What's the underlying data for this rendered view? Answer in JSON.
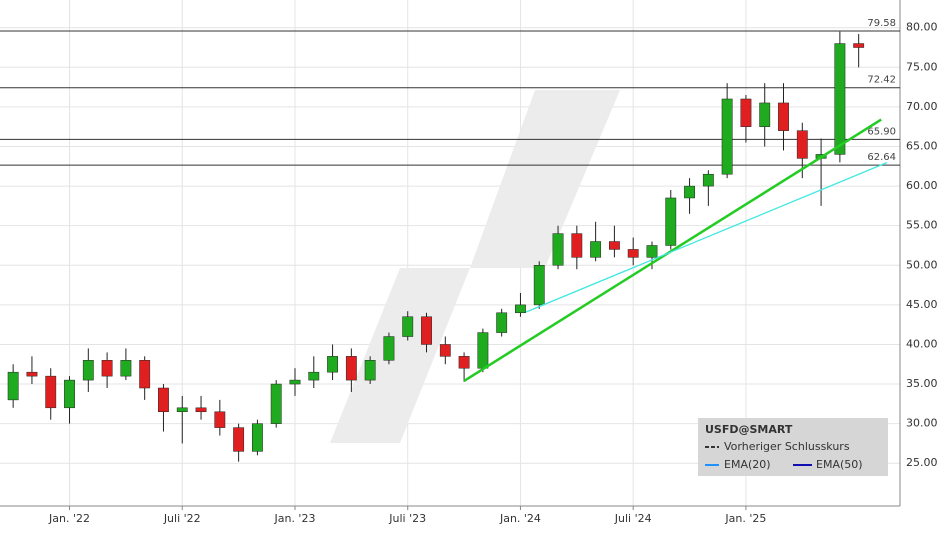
{
  "chart_data": {
    "type": "candlestick",
    "x": [
      -3,
      -2,
      -1,
      0,
      1,
      2,
      3,
      4,
      5,
      6,
      7,
      8,
      9,
      10,
      11,
      12,
      13,
      14,
      15,
      16,
      17,
      18,
      19,
      20,
      21,
      22,
      23,
      24,
      25,
      26,
      27,
      28,
      29,
      30,
      31,
      32,
      33,
      34,
      35,
      36,
      37,
      38,
      39,
      40,
      41,
      42
    ],
    "open": [
      33,
      36.5,
      36,
      32,
      35.5,
      38,
      36,
      38,
      34.5,
      31.5,
      32,
      31.5,
      29.5,
      26.5,
      30,
      35,
      35.5,
      36.5,
      38.5,
      35.5,
      38,
      41,
      43.5,
      40,
      38.5,
      37,
      41.5,
      44,
      45,
      50,
      54,
      51,
      53,
      52,
      51,
      52.5,
      58.5,
      60,
      61.5,
      71,
      67.5,
      70.5,
      67,
      63.5,
      64,
      78
    ],
    "high": [
      37.5,
      38.5,
      37,
      36,
      39.5,
      39,
      39.5,
      38.5,
      35,
      33.5,
      33.5,
      33,
      30,
      30.5,
      35.5,
      37,
      38.5,
      40,
      39.5,
      38.5,
      41.5,
      44.2,
      44,
      41,
      39,
      42,
      44.5,
      46.5,
      50.5,
      55,
      55,
      55.5,
      55,
      53.5,
      53,
      59.5,
      61,
      62,
      73,
      71.5,
      73,
      73,
      68,
      66,
      79.5,
      79.2
    ],
    "low": [
      32,
      35,
      30.5,
      30,
      34,
      34.5,
      35.5,
      33,
      29,
      27.5,
      30.5,
      28.5,
      25.2,
      26,
      29.5,
      33.5,
      34.5,
      35.5,
      34,
      35,
      37.5,
      40.5,
      39,
      37.5,
      35.3,
      36.5,
      41,
      43.5,
      44.5,
      49.5,
      49.5,
      50.5,
      51,
      50,
      49.5,
      52,
      56.5,
      57.5,
      61,
      65.5,
      65,
      64.5,
      61,
      57.5,
      63,
      75
    ],
    "close": [
      36.5,
      36,
      32,
      35.5,
      38,
      36,
      38,
      34.5,
      31.5,
      32,
      31.5,
      29.5,
      26.5,
      30,
      35,
      35.5,
      36.5,
      38.5,
      35.5,
      38,
      41,
      43.5,
      40,
      38.5,
      37,
      41.5,
      44,
      45,
      50,
      54,
      51,
      53,
      52,
      51,
      52.5,
      58.5,
      60,
      61.5,
      71,
      67.5,
      70.5,
      67,
      63.5,
      64,
      78,
      77.5
    ],
    "up_color": "#1faa1f",
    "down_color": "#e02020",
    "xlim": [
      -3.7,
      44.2
    ],
    "xticks": [
      {
        "value": 0,
        "label": "Jan. '22"
      },
      {
        "value": 6,
        "label": "Juli '22"
      },
      {
        "value": 12,
        "label": "Jan. '23"
      },
      {
        "value": 18,
        "label": "Juli '23"
      },
      {
        "value": 24,
        "label": "Jan. '24"
      },
      {
        "value": 30,
        "label": "Juli '24"
      },
      {
        "value": 36,
        "label": "Jan. '25"
      }
    ],
    "ylim": [
      19.6,
      83.5
    ],
    "yticks": [
      {
        "value": 25,
        "label": "25.00"
      },
      {
        "value": 30,
        "label": "30.00"
      },
      {
        "value": 35,
        "label": "35.00"
      },
      {
        "value": 40,
        "label": "40.00"
      },
      {
        "value": 45,
        "label": "45.00"
      },
      {
        "value": 50,
        "label": "50.00"
      },
      {
        "value": 55,
        "label": "55.00"
      },
      {
        "value": 60,
        "label": "60.00"
      },
      {
        "value": 65,
        "label": "65.00"
      },
      {
        "value": 70,
        "label": "70.00"
      },
      {
        "value": 75,
        "label": "75.00"
      },
      {
        "value": 80,
        "label": "80.00"
      }
    ],
    "grid": true,
    "levels": [
      79.58,
      {
        "value": 72.42,
        "label": "72.42"
      },
      {
        "value": 65.9,
        "label": "65.90"
      },
      62.64
    ],
    "trend_lines": [
      {
        "color": "#22cc22",
        "x": [
          21,
          43.2
        ],
        "y": [
          35.4,
          68.4
        ]
      },
      {
        "color": "#40e8e0",
        "x": [
          24.3,
          43.5
        ],
        "y": [
          44.1,
          62.96
        ]
      }
    ],
    "legend": {
      "title": "USFD@SMART",
      "items": [
        "Vorheriger Schlusskurs",
        "EMA(20)",
        "EMA(50)"
      ],
      "colors": [
        "#333333",
        "#1e90ff",
        "#1010b0"
      ]
    }
  }
}
